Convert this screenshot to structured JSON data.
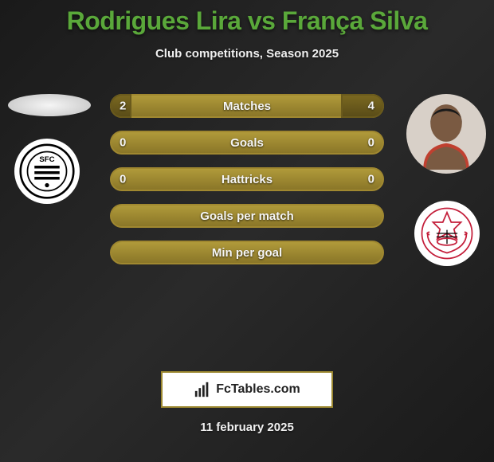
{
  "title": "Rodrigues Lira vs França Silva",
  "title_color": "#5aa83a",
  "subtitle": "Club competitions, Season 2025",
  "date": "11 february 2025",
  "brand": "FcTables.com",
  "background": "#1e1e1e",
  "bar_border_color": "#a08830",
  "bar_bg_color": "#b09a3a",
  "bar_fill_color": "#7a6820",
  "stats": [
    {
      "label": "Matches",
      "left_val": "2",
      "right_val": "4",
      "left_pct": 8,
      "right_pct": 16
    },
    {
      "label": "Goals",
      "left_val": "0",
      "right_val": "0",
      "left_pct": 0,
      "right_pct": 0
    },
    {
      "label": "Hattricks",
      "left_val": "0",
      "right_val": "0",
      "left_pct": 0,
      "right_pct": 0
    },
    {
      "label": "Goals per match",
      "left_val": "",
      "right_val": "",
      "left_pct": 0,
      "right_pct": 0
    },
    {
      "label": "Min per goal",
      "left_val": "",
      "right_val": "",
      "left_pct": 0,
      "right_pct": 0
    }
  ],
  "players": {
    "left": {
      "name": "Rodrigues Lira",
      "club": "Santos FC"
    },
    "right": {
      "name": "França Silva",
      "club": "Corinthians"
    }
  }
}
